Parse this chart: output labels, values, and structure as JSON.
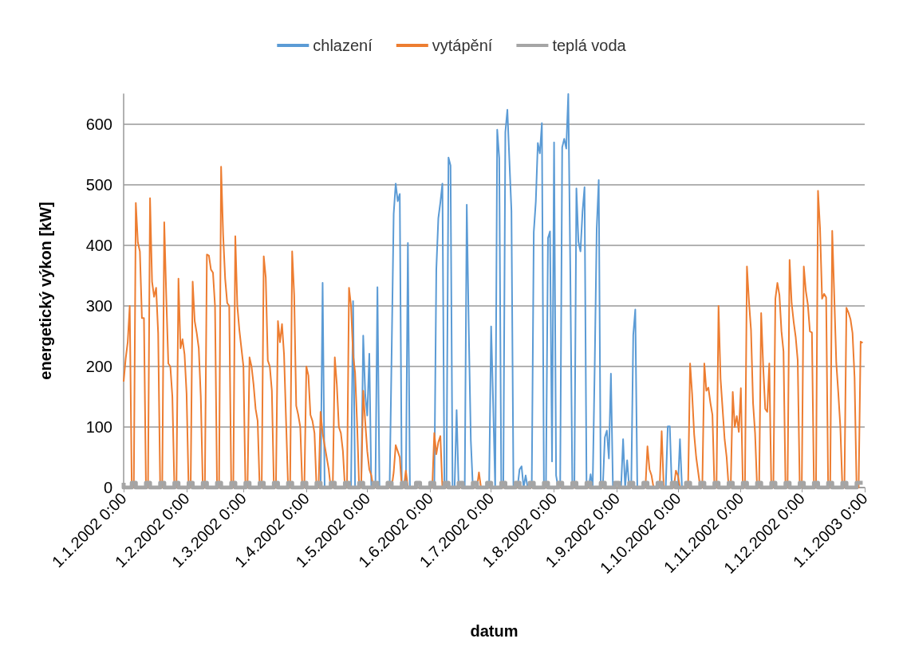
{
  "chart_data": {
    "type": "line",
    "xlabel": "datum",
    "ylabel": "energetický výkon [kW]",
    "xlim": [
      "2002-01-01",
      "2003-01-01"
    ],
    "xticks": [
      {
        "value": "2002-01-01",
        "label": "1.1.2002 0:00"
      },
      {
        "value": "2002-02-01",
        "label": "1.2.2002 0:00"
      },
      {
        "value": "2002-03-01",
        "label": "1.3.2002 0:00"
      },
      {
        "value": "2002-04-01",
        "label": "1.4.2002 0:00"
      },
      {
        "value": "2002-05-01",
        "label": "1.5.2002 0:00"
      },
      {
        "value": "2002-06-01",
        "label": "1.6.2002 0:00"
      },
      {
        "value": "2002-07-01",
        "label": "1.7.2002 0:00"
      },
      {
        "value": "2002-08-01",
        "label": "1.8.2002 0:00"
      },
      {
        "value": "2002-09-01",
        "label": "1.9.2002 0:00"
      },
      {
        "value": "2002-10-01",
        "label": "1.10.2002 0:00"
      },
      {
        "value": "2002-11-01",
        "label": "1.11.2002 0:00"
      },
      {
        "value": "2002-12-01",
        "label": "1.12.2002 0:00"
      },
      {
        "value": "2003-01-01",
        "label": "1.1.2003 0:00"
      }
    ],
    "ylim": [
      0,
      650
    ],
    "yticks": [
      0,
      100,
      200,
      300,
      400,
      500,
      600
    ],
    "grid": "y",
    "legend": "top",
    "marker": "none",
    "line_style": "solid",
    "series": [
      {
        "name": "chlazení",
        "color": "#5b9bd5",
        "x": [
          "2002-04-08",
          "2002-04-09",
          "2002-04-10",
          "2002-04-23",
          "2002-04-24",
          "2002-04-25",
          "2002-04-28",
          "2002-04-29",
          "2002-04-30",
          "2002-05-01",
          "2002-05-02",
          "2002-05-03",
          "2002-05-05",
          "2002-05-06",
          "2002-05-07",
          "2002-05-12",
          "2002-05-13",
          "2002-05-14",
          "2002-05-15",
          "2002-05-16",
          "2002-05-17",
          "2002-05-18",
          "2002-05-20",
          "2002-05-21",
          "2002-05-22",
          "2002-06-03",
          "2002-06-04",
          "2002-06-05",
          "2002-06-06",
          "2002-06-07",
          "2002-06-08",
          "2002-06-09",
          "2002-06-10",
          "2002-06-11",
          "2002-06-12",
          "2002-06-13",
          "2002-06-14",
          "2002-06-15",
          "2002-06-18",
          "2002-06-19",
          "2002-06-20",
          "2002-06-21",
          "2002-06-22",
          "2002-06-30",
          "2002-07-01",
          "2002-07-02",
          "2002-07-03",
          "2002-07-04",
          "2002-07-05",
          "2002-07-06",
          "2002-07-07",
          "2002-07-08",
          "2002-07-09",
          "2002-07-10",
          "2002-07-11",
          "2002-07-12",
          "2002-07-14",
          "2002-07-15",
          "2002-07-16",
          "2002-07-17",
          "2002-07-18",
          "2002-07-19",
          "2002-07-21",
          "2002-07-22",
          "2002-07-23",
          "2002-07-24",
          "2002-07-25",
          "2002-07-26",
          "2002-07-27",
          "2002-07-28",
          "2002-07-29",
          "2002-07-30",
          "2002-07-31",
          "2002-08-01",
          "2002-08-02",
          "2002-08-03",
          "2002-08-04",
          "2002-08-05",
          "2002-08-06",
          "2002-08-07",
          "2002-08-08",
          "2002-08-09",
          "2002-08-10",
          "2002-08-11",
          "2002-08-12",
          "2002-08-13",
          "2002-08-14",
          "2002-08-15",
          "2002-08-16",
          "2002-08-17",
          "2002-08-18",
          "2002-08-19",
          "2002-08-20",
          "2002-08-21",
          "2002-08-22",
          "2002-08-23",
          "2002-08-24",
          "2002-08-25",
          "2002-08-26",
          "2002-08-27",
          "2002-08-28",
          "2002-08-29",
          "2002-08-30",
          "2002-09-03",
          "2002-09-04",
          "2002-09-05",
          "2002-09-06",
          "2002-09-07",
          "2002-09-08",
          "2002-09-09",
          "2002-09-10",
          "2002-09-11",
          "2002-09-25",
          "2002-09-26",
          "2002-09-27",
          "2002-09-28",
          "2002-10-01",
          "2002-10-02",
          "2002-10-03"
        ],
        "values": [
          0,
          338,
          0,
          0,
          308,
          0,
          0,
          251,
          153,
          119,
          221,
          0,
          0,
          331,
          0,
          0,
          223,
          452,
          502,
          473,
          485,
          0,
          0,
          404,
          0,
          0,
          360,
          445,
          471,
          502,
          0,
          0,
          545,
          532,
          0,
          0,
          128,
          0,
          0,
          467,
          258,
          78,
          0,
          0,
          266,
          138,
          0,
          591,
          544,
          0,
          0,
          587,
          624,
          540,
          457,
          0,
          0,
          30,
          35,
          0,
          20,
          0,
          0,
          422,
          472,
          569,
          552,
          602,
          0,
          0,
          412,
          423,
          43,
          570,
          20,
          0,
          0,
          562,
          576,
          560,
          650,
          357,
          0,
          0,
          494,
          406,
          390,
          455,
          496,
          0,
          0,
          22,
          0,
          198,
          428,
          508,
          0,
          0,
          83,
          94,
          48,
          188,
          0,
          0,
          80,
          0,
          45,
          0,
          0,
          252,
          294,
          0,
          0,
          101,
          101,
          0,
          0,
          80,
          0
        ]
      },
      {
        "name": "vytápění",
        "color": "#ed7d31",
        "x": [
          "2002-01-01",
          "2002-01-02",
          "2002-01-03",
          "2002-01-04",
          "2002-01-05",
          "2002-01-06",
          "2002-01-07",
          "2002-01-08",
          "2002-01-09",
          "2002-01-10",
          "2002-01-11",
          "2002-01-12",
          "2002-01-13",
          "2002-01-14",
          "2002-01-15",
          "2002-01-16",
          "2002-01-17",
          "2002-01-18",
          "2002-01-19",
          "2002-01-20",
          "2002-01-21",
          "2002-01-22",
          "2002-01-23",
          "2002-01-24",
          "2002-01-25",
          "2002-01-26",
          "2002-01-27",
          "2002-01-28",
          "2002-01-29",
          "2002-01-30",
          "2002-01-31",
          "2002-02-01",
          "2002-02-02",
          "2002-02-03",
          "2002-02-04",
          "2002-02-05",
          "2002-02-06",
          "2002-02-07",
          "2002-02-08",
          "2002-02-09",
          "2002-02-10",
          "2002-02-11",
          "2002-02-12",
          "2002-02-13",
          "2002-02-14",
          "2002-02-15",
          "2002-02-16",
          "2002-02-17",
          "2002-02-18",
          "2002-02-19",
          "2002-02-20",
          "2002-02-21",
          "2002-02-22",
          "2002-02-23",
          "2002-02-24",
          "2002-02-25",
          "2002-02-26",
          "2002-02-27",
          "2002-02-28",
          "2002-03-01",
          "2002-03-02",
          "2002-03-03",
          "2002-03-04",
          "2002-03-05",
          "2002-03-06",
          "2002-03-07",
          "2002-03-08",
          "2002-03-09",
          "2002-03-10",
          "2002-03-11",
          "2002-03-12",
          "2002-03-13",
          "2002-03-14",
          "2002-03-15",
          "2002-03-16",
          "2002-03-17",
          "2002-03-18",
          "2002-03-19",
          "2002-03-20",
          "2002-03-21",
          "2002-03-22",
          "2002-03-23",
          "2002-03-24",
          "2002-03-25",
          "2002-03-26",
          "2002-03-27",
          "2002-03-28",
          "2002-03-29",
          "2002-03-30",
          "2002-03-31",
          "2002-04-01",
          "2002-04-02",
          "2002-04-03",
          "2002-04-04",
          "2002-04-05",
          "2002-04-06",
          "2002-04-07",
          "2002-04-08",
          "2002-04-09",
          "2002-04-10",
          "2002-04-11",
          "2002-04-12",
          "2002-04-13",
          "2002-04-14",
          "2002-04-15",
          "2002-04-16",
          "2002-04-17",
          "2002-04-18",
          "2002-04-19",
          "2002-04-20",
          "2002-04-21",
          "2002-04-22",
          "2002-04-23",
          "2002-04-24",
          "2002-04-25",
          "2002-04-26",
          "2002-04-27",
          "2002-04-28",
          "2002-04-29",
          "2002-04-30",
          "2002-05-01",
          "2002-05-02",
          "2002-05-03",
          "2002-05-04",
          "2002-05-13",
          "2002-05-14",
          "2002-05-15",
          "2002-05-16",
          "2002-05-17",
          "2002-05-18",
          "2002-05-19",
          "2002-05-20",
          "2002-05-21",
          "2002-06-02",
          "2002-06-03",
          "2002-06-04",
          "2002-06-05",
          "2002-06-06",
          "2002-06-07",
          "2002-06-24",
          "2002-06-25",
          "2002-06-26",
          "2002-09-15",
          "2002-09-16",
          "2002-09-17",
          "2002-09-18",
          "2002-09-19",
          "2002-09-22",
          "2002-09-23",
          "2002-09-24",
          "2002-09-29",
          "2002-09-30",
          "2002-10-01",
          "2002-10-02",
          "2002-10-06",
          "2002-10-07",
          "2002-10-08",
          "2002-10-09",
          "2002-10-10",
          "2002-10-11",
          "2002-10-12",
          "2002-10-13",
          "2002-10-14",
          "2002-10-15",
          "2002-10-16",
          "2002-10-17",
          "2002-10-18",
          "2002-10-19",
          "2002-10-20",
          "2002-10-21",
          "2002-10-22",
          "2002-10-23",
          "2002-10-24",
          "2002-10-25",
          "2002-10-26",
          "2002-10-27",
          "2002-10-28",
          "2002-10-29",
          "2002-10-30",
          "2002-10-31",
          "2002-11-01",
          "2002-11-02",
          "2002-11-03",
          "2002-11-04",
          "2002-11-05",
          "2002-11-06",
          "2002-11-07",
          "2002-11-08",
          "2002-11-09",
          "2002-11-10",
          "2002-11-11",
          "2002-11-12",
          "2002-11-13",
          "2002-11-14",
          "2002-11-15",
          "2002-11-16",
          "2002-11-17",
          "2002-11-18",
          "2002-11-19",
          "2002-11-20",
          "2002-11-21",
          "2002-11-22",
          "2002-11-23",
          "2002-11-24",
          "2002-11-25",
          "2002-11-26",
          "2002-11-27",
          "2002-11-28",
          "2002-11-29",
          "2002-11-30",
          "2002-12-01",
          "2002-12-02",
          "2002-12-03",
          "2002-12-04",
          "2002-12-05",
          "2002-12-06",
          "2002-12-07",
          "2002-12-08",
          "2002-12-09",
          "2002-12-10",
          "2002-12-11",
          "2002-12-12",
          "2002-12-13",
          "2002-12-14",
          "2002-12-15",
          "2002-12-16",
          "2002-12-17",
          "2002-12-18",
          "2002-12-19",
          "2002-12-20",
          "2002-12-21",
          "2002-12-22",
          "2002-12-23",
          "2002-12-24",
          "2002-12-25",
          "2002-12-26",
          "2002-12-27",
          "2002-12-28",
          "2002-12-29",
          "2002-12-30",
          "2002-12-31"
        ],
        "values": [
          175,
          213,
          240,
          300,
          0,
          0,
          470,
          405,
          390,
          280,
          280,
          0,
          0,
          478,
          340,
          315,
          330,
          255,
          0,
          0,
          438,
          315,
          205,
          200,
          150,
          0,
          0,
          345,
          230,
          245,
          220,
          155,
          0,
          0,
          340,
          275,
          255,
          230,
          150,
          0,
          0,
          385,
          383,
          360,
          355,
          300,
          0,
          0,
          530,
          418,
          345,
          305,
          300,
          0,
          0,
          415,
          300,
          260,
          230,
          200,
          0,
          0,
          215,
          200,
          170,
          130,
          110,
          0,
          0,
          382,
          347,
          210,
          200,
          160,
          0,
          0,
          275,
          240,
          270,
          220,
          110,
          0,
          0,
          390,
          318,
          135,
          120,
          100,
          0,
          0,
          200,
          185,
          120,
          110,
          90,
          0,
          0,
          125,
          90,
          70,
          50,
          30,
          0,
          0,
          215,
          170,
          100,
          90,
          60,
          0,
          0,
          330,
          300,
          220,
          190,
          105,
          0,
          0,
          160,
          108,
          60,
          30,
          20,
          0,
          0,
          25,
          70,
          60,
          50,
          0,
          0,
          28,
          0,
          0,
          90,
          55,
          75,
          85,
          0,
          0,
          25,
          0,
          0,
          68,
          30,
          20,
          0,
          0,
          93,
          0,
          0,
          28,
          20,
          0,
          0,
          205,
          155,
          88,
          50,
          25,
          0,
          0,
          205,
          160,
          165,
          140,
          120,
          0,
          0,
          300,
          180,
          130,
          80,
          50,
          0,
          0,
          158,
          100,
          118,
          92,
          164,
          0,
          0,
          365,
          307,
          260,
          140,
          90,
          0,
          0,
          288,
          200,
          130,
          125,
          205,
          0,
          0,
          312,
          338,
          318,
          258,
          225,
          0,
          0,
          376,
          305,
          274,
          249,
          210,
          0,
          0,
          365,
          325,
          302,
          258,
          256,
          0,
          0,
          490,
          428,
          312,
          320,
          314,
          0,
          0,
          424,
          317,
          206,
          156,
          100,
          0,
          0,
          297,
          289,
          278,
          255,
          182,
          0,
          0,
          241,
          239
        ]
      },
      {
        "name": "teplá voda",
        "color": "#a5a5a5",
        "type": "step",
        "x": [
          "2002-01-01",
          "2002-01-05",
          "2002-01-07",
          "2002-01-12",
          "2002-01-14",
          "2002-01-19",
          "2002-01-21",
          "2002-01-26",
          "2002-01-28",
          "2002-02-02",
          "2002-02-04",
          "2002-02-09",
          "2002-02-11",
          "2002-02-16",
          "2002-02-18",
          "2002-02-23",
          "2002-02-25",
          "2002-03-02",
          "2002-03-04",
          "2002-03-09",
          "2002-03-11",
          "2002-03-16",
          "2002-03-18",
          "2002-03-23",
          "2002-03-25",
          "2002-03-30",
          "2002-04-01",
          "2002-04-06",
          "2002-04-08",
          "2002-04-13",
          "2002-04-15",
          "2002-04-20",
          "2002-04-22",
          "2002-04-27",
          "2002-04-29",
          "2002-05-04",
          "2002-05-06",
          "2002-05-11",
          "2002-05-13",
          "2002-05-18",
          "2002-05-20",
          "2002-05-25",
          "2002-05-27",
          "2002-06-01",
          "2002-06-03",
          "2002-06-08",
          "2002-06-10",
          "2002-06-15",
          "2002-06-17",
          "2002-06-22",
          "2002-06-24",
          "2002-06-29",
          "2002-07-01",
          "2002-07-06",
          "2002-07-08",
          "2002-07-13",
          "2002-07-15",
          "2002-07-20",
          "2002-07-22",
          "2002-07-27",
          "2002-07-29",
          "2002-08-03",
          "2002-08-05",
          "2002-08-10",
          "2002-08-12",
          "2002-08-17",
          "2002-08-19",
          "2002-08-24",
          "2002-08-26",
          "2002-08-31",
          "2002-09-02",
          "2002-09-07",
          "2002-09-09",
          "2002-09-14",
          "2002-09-16",
          "2002-09-21",
          "2002-09-23",
          "2002-09-28",
          "2002-09-30",
          "2002-10-05",
          "2002-10-07",
          "2002-10-12",
          "2002-10-14",
          "2002-10-19",
          "2002-10-21",
          "2002-10-26",
          "2002-10-28",
          "2002-11-02",
          "2002-11-04",
          "2002-11-09",
          "2002-11-11",
          "2002-11-16",
          "2002-11-18",
          "2002-11-23",
          "2002-11-25",
          "2002-11-30",
          "2002-12-02",
          "2002-12-07",
          "2002-12-09",
          "2002-12-14",
          "2002-12-16",
          "2002-12-21",
          "2002-12-23",
          "2002-12-28",
          "2002-12-30",
          "2002-12-31"
        ],
        "values": [
          8,
          0,
          8,
          0,
          8,
          0,
          8,
          0,
          8,
          0,
          8,
          0,
          8,
          0,
          8,
          0,
          8,
          0,
          8,
          0,
          8,
          0,
          8,
          0,
          8,
          0,
          8,
          0,
          8,
          0,
          8,
          0,
          8,
          0,
          8,
          0,
          8,
          0,
          8,
          0,
          8,
          0,
          8,
          0,
          8,
          0,
          8,
          0,
          8,
          0,
          8,
          0,
          8,
          0,
          8,
          0,
          8,
          0,
          8,
          0,
          8,
          0,
          8,
          0,
          8,
          0,
          8,
          0,
          8,
          0,
          8,
          0,
          8,
          0,
          8,
          0,
          8,
          0,
          8,
          0,
          8,
          0,
          8,
          0,
          8,
          0,
          8,
          0,
          8,
          0,
          8,
          0,
          8,
          0,
          8,
          0,
          8,
          0,
          8,
          0,
          8,
          0,
          8,
          0,
          8,
          8
        ]
      }
    ]
  }
}
